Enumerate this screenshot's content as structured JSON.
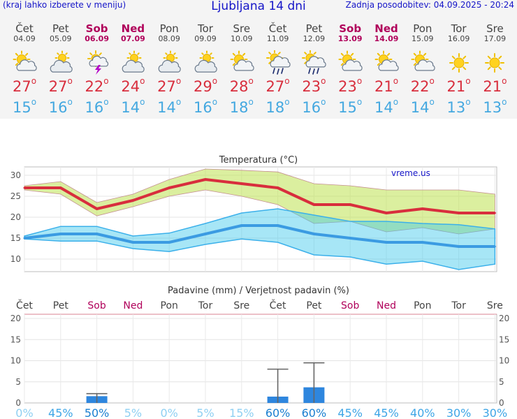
{
  "header": {
    "menu_hint": "(kraj lahko izberete v meniju)",
    "title": "Ljubljana 14 dni",
    "updated": "Zadnja posodobitev: 04.09.2025 - 20:24"
  },
  "colors": {
    "accent_blue": "#1515c8",
    "weekend": "#b0005a",
    "temp_max": "#d82e3d",
    "temp_min": "#44a8e0",
    "precip_bar": "#2e86de"
  },
  "days": [
    {
      "name": "Čet",
      "date": "04.09",
      "weekend": false,
      "icon": "sun-cloud-icon",
      "tmax": "27",
      "tmin": "15"
    },
    {
      "name": "Pet",
      "date": "05.09",
      "weekend": false,
      "icon": "cloudy-sun-icon",
      "tmax": "27",
      "tmin": "16"
    },
    {
      "name": "Sob",
      "date": "06.09",
      "weekend": true,
      "icon": "thunderstorm-icon",
      "tmax": "22",
      "tmin": "16"
    },
    {
      "name": "Ned",
      "date": "07.09",
      "weekend": true,
      "icon": "cloudy-sun-icon",
      "tmax": "24",
      "tmin": "14"
    },
    {
      "name": "Pon",
      "date": "08.09",
      "weekend": false,
      "icon": "cloudy-sun-icon",
      "tmax": "27",
      "tmin": "14"
    },
    {
      "name": "Tor",
      "date": "09.09",
      "weekend": false,
      "icon": "cloudy-sun-icon",
      "tmax": "29",
      "tmin": "16"
    },
    {
      "name": "Sre",
      "date": "10.09",
      "weekend": false,
      "icon": "sun-cloud-icon",
      "tmax": "28",
      "tmin": "18"
    },
    {
      "name": "Čet",
      "date": "11.09",
      "weekend": false,
      "icon": "rain-shower-icon",
      "tmax": "27",
      "tmin": "18"
    },
    {
      "name": "Pet",
      "date": "12.09",
      "weekend": false,
      "icon": "rain-shower-icon",
      "tmax": "23",
      "tmin": "16"
    },
    {
      "name": "Sob",
      "date": "13.09",
      "weekend": true,
      "icon": "sun-cloud-icon",
      "tmax": "23",
      "tmin": "15"
    },
    {
      "name": "Ned",
      "date": "14.09",
      "weekend": true,
      "icon": "sun-cloud-icon",
      "tmax": "21",
      "tmin": "14"
    },
    {
      "name": "Pon",
      "date": "15.09",
      "weekend": false,
      "icon": "sun-cloud-icon",
      "tmax": "22",
      "tmin": "14"
    },
    {
      "name": "Tor",
      "date": "16.09",
      "weekend": false,
      "icon": "sun-icon",
      "tmax": "21",
      "tmin": "13"
    },
    {
      "name": "Sre",
      "date": "17.09",
      "weekend": false,
      "icon": "sun-icon",
      "tmax": "21",
      "tmin": "13"
    }
  ],
  "chart_data": [
    {
      "type": "line",
      "title": "Temperatura (°C)",
      "watermark": "vreme.us",
      "categories": [
        "Čet",
        "Pet",
        "Sob",
        "Ned",
        "Pon",
        "Tor",
        "Sre",
        "Čet",
        "Pet",
        "Sob",
        "Ned",
        "Pon",
        "Tor",
        "Sre"
      ],
      "ylim": [
        7,
        32
      ],
      "yticks": [
        10,
        15,
        20,
        25,
        30
      ],
      "grid": true,
      "series": [
        {
          "values": [
            27,
            27,
            22,
            24,
            27,
            29,
            28,
            27,
            23,
            23,
            21,
            22,
            21,
            21
          ],
          "band_high": [
            27.5,
            28.5,
            23.5,
            25.5,
            29,
            31.5,
            31.2,
            30.8,
            28,
            27.5,
            26.5,
            26.5,
            26.5,
            25.5
          ],
          "band_low": [
            26.5,
            25.5,
            20.3,
            22.5,
            25,
            26.5,
            25,
            23,
            18.5,
            19,
            16.5,
            17.5,
            16,
            17.2
          ]
        },
        {
          "values": [
            15,
            16,
            16,
            14,
            14,
            16,
            18,
            18,
            16,
            15,
            14,
            14,
            13,
            13
          ],
          "band_high": [
            15.5,
            17.8,
            17.8,
            15.5,
            16.2,
            18.5,
            21,
            22,
            20.5,
            19,
            19,
            18.5,
            18.2,
            17.2
          ],
          "band_low": [
            14.8,
            14.3,
            14.3,
            12.5,
            11.8,
            13.5,
            14.8,
            14,
            11,
            10.5,
            8.8,
            9.5,
            7.5,
            8.8
          ]
        }
      ]
    },
    {
      "type": "bar",
      "title": "Padavine (mm) / Verjetnost padavin (%)",
      "categories": [
        "Čet",
        "Pet",
        "Sob",
        "Ned",
        "Pon",
        "Tor",
        "Sre",
        "Čet",
        "Pet",
        "Sob",
        "Ned",
        "Pon",
        "Tor",
        "Sre"
      ],
      "ylim": [
        0,
        21
      ],
      "yticks": [
        0,
        5,
        10,
        15,
        20
      ],
      "values": [
        0,
        0,
        1.6,
        0,
        0,
        0,
        0,
        1.5,
        3.7,
        0,
        0,
        0,
        0,
        0
      ],
      "error_high": [
        0,
        0,
        2.2,
        0,
        0,
        0,
        0,
        8,
        9.5,
        0,
        0,
        0,
        0,
        0
      ],
      "probabilities": [
        "0%",
        "45%",
        "50%",
        "5%",
        "0%",
        "5%",
        "15%",
        "60%",
        "60%",
        "45%",
        "45%",
        "40%",
        "30%",
        "30%"
      ]
    }
  ]
}
